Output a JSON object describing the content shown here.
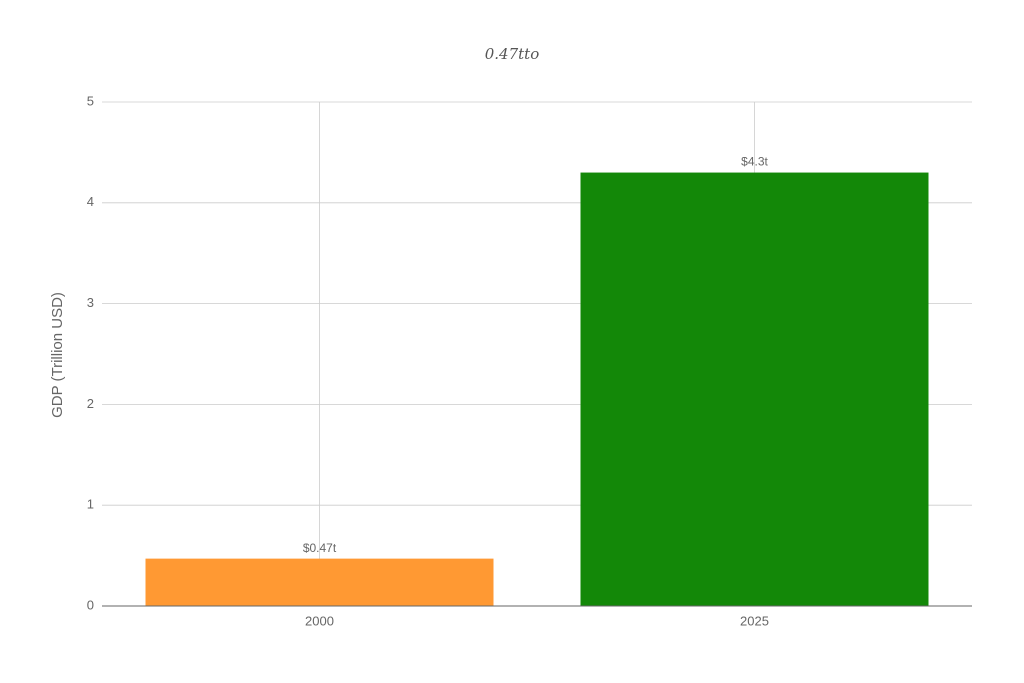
{
  "chart_data": {
    "type": "bar",
    "title": "0.47tto",
    "y_label": "GDP (Trillion USD)",
    "categories": [
      "2000",
      "2025"
    ],
    "values": [
      0.47,
      4.3
    ],
    "value_labels": [
      "$0.47t",
      "$4.3t"
    ],
    "colors": [
      "#ff9933",
      "#138808"
    ],
    "ylim": [
      0,
      5
    ],
    "yticks": [
      0,
      1,
      2,
      3,
      4,
      5
    ],
    "grid": true
  }
}
